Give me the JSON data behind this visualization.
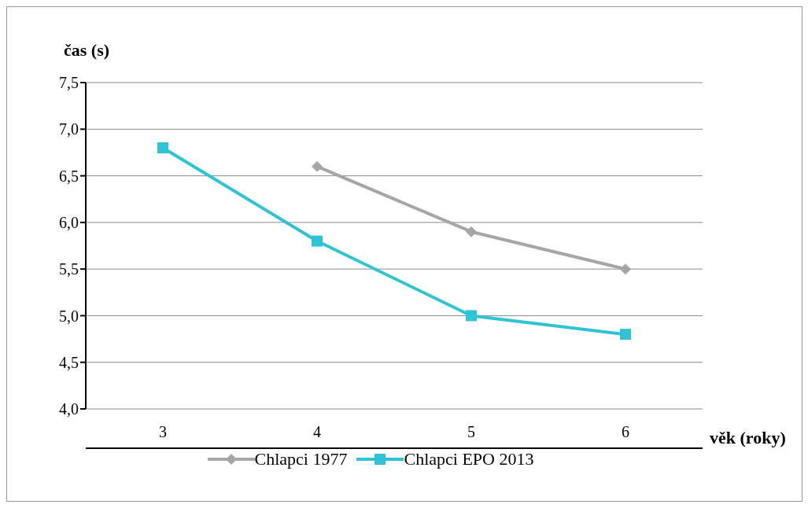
{
  "chart_data": {
    "type": "line",
    "xlabel": "věk (roky)",
    "ylabel": "čas (s)",
    "categories": [
      "3",
      "4",
      "5",
      "6"
    ],
    "series": [
      {
        "name": "Chlapci 1977",
        "color": "#a6a6a6",
        "marker": "diamond",
        "values": [
          null,
          6.6,
          5.9,
          5.5
        ]
      },
      {
        "name": "Chlapci EPO 2013",
        "color": "#2ec4d6",
        "marker": "square",
        "values": [
          6.8,
          5.8,
          5.0,
          4.8
        ]
      }
    ],
    "ylim": [
      4,
      7.5
    ],
    "yticks": [
      {
        "value": 4,
        "label": "4,0"
      },
      {
        "value": 4.5,
        "label": "4,5"
      },
      {
        "value": 5,
        "label": "5,0"
      },
      {
        "value": 5.5,
        "label": "5,5"
      },
      {
        "value": 6,
        "label": "6,0"
      },
      {
        "value": 6.5,
        "label": "6,5"
      },
      {
        "value": 7,
        "label": "7,0"
      },
      {
        "value": 7.5,
        "label": "7,5"
      }
    ],
    "grid": "y",
    "legend": "bottom"
  }
}
